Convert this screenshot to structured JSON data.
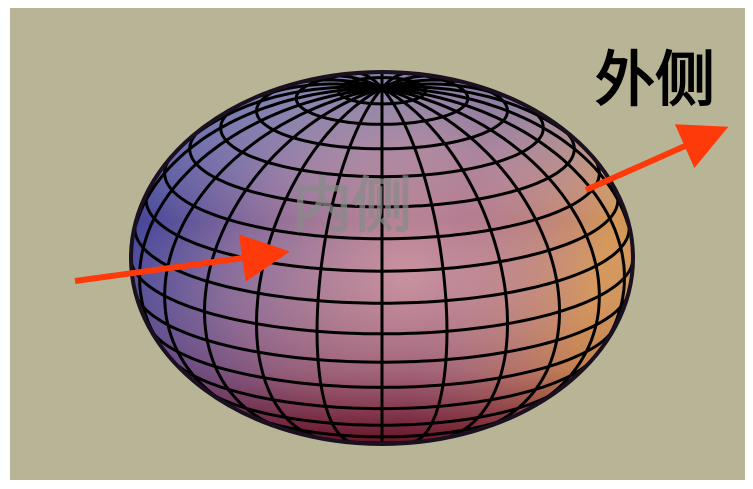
{
  "labels": {
    "outer": "外侧",
    "inner": "内侧"
  }
}
